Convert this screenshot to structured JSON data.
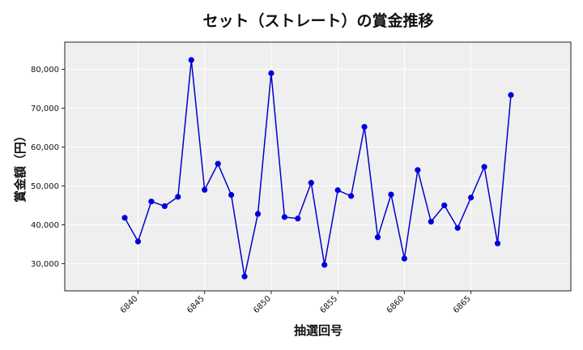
{
  "chart_data": {
    "type": "line",
    "title": "セット（ストレート）の賞金推移",
    "xlabel": "抽選回号",
    "ylabel": "賞金額（円）",
    "x": [
      6839,
      6840,
      6841,
      6842,
      6843,
      6844,
      6845,
      6846,
      6847,
      6848,
      6849,
      6850,
      6851,
      6852,
      6853,
      6854,
      6855,
      6856,
      6857,
      6858,
      6859,
      6860,
      6861,
      6862,
      6863,
      6864,
      6865,
      6866,
      6867,
      6868
    ],
    "y": [
      41800,
      35700,
      46000,
      44800,
      47200,
      82400,
      49000,
      55700,
      47700,
      26700,
      42800,
      79000,
      42000,
      41600,
      50800,
      29700,
      48900,
      47400,
      65200,
      36800,
      47800,
      31300,
      54100,
      40800,
      45000,
      39200,
      47000,
      54900,
      35200,
      73400
    ],
    "xlim": [
      6834.5,
      6872.5
    ],
    "ylim": [
      23000,
      87000
    ],
    "xticks": [
      6840,
      6845,
      6850,
      6855,
      6860,
      6865
    ],
    "xtick_labels": [
      "6840",
      "6845",
      "6850",
      "6855",
      "6860",
      "6865"
    ],
    "yticks": [
      30000,
      40000,
      50000,
      60000,
      70000,
      80000
    ],
    "ytick_labels": [
      "30,000",
      "40,000",
      "50,000",
      "60,000",
      "70,000",
      "80,000"
    ],
    "grid": true,
    "line_color": "#0000cc",
    "marker_color": "#0000dd",
    "background_color": "#efefef",
    "grid_color": "#ffffff"
  }
}
